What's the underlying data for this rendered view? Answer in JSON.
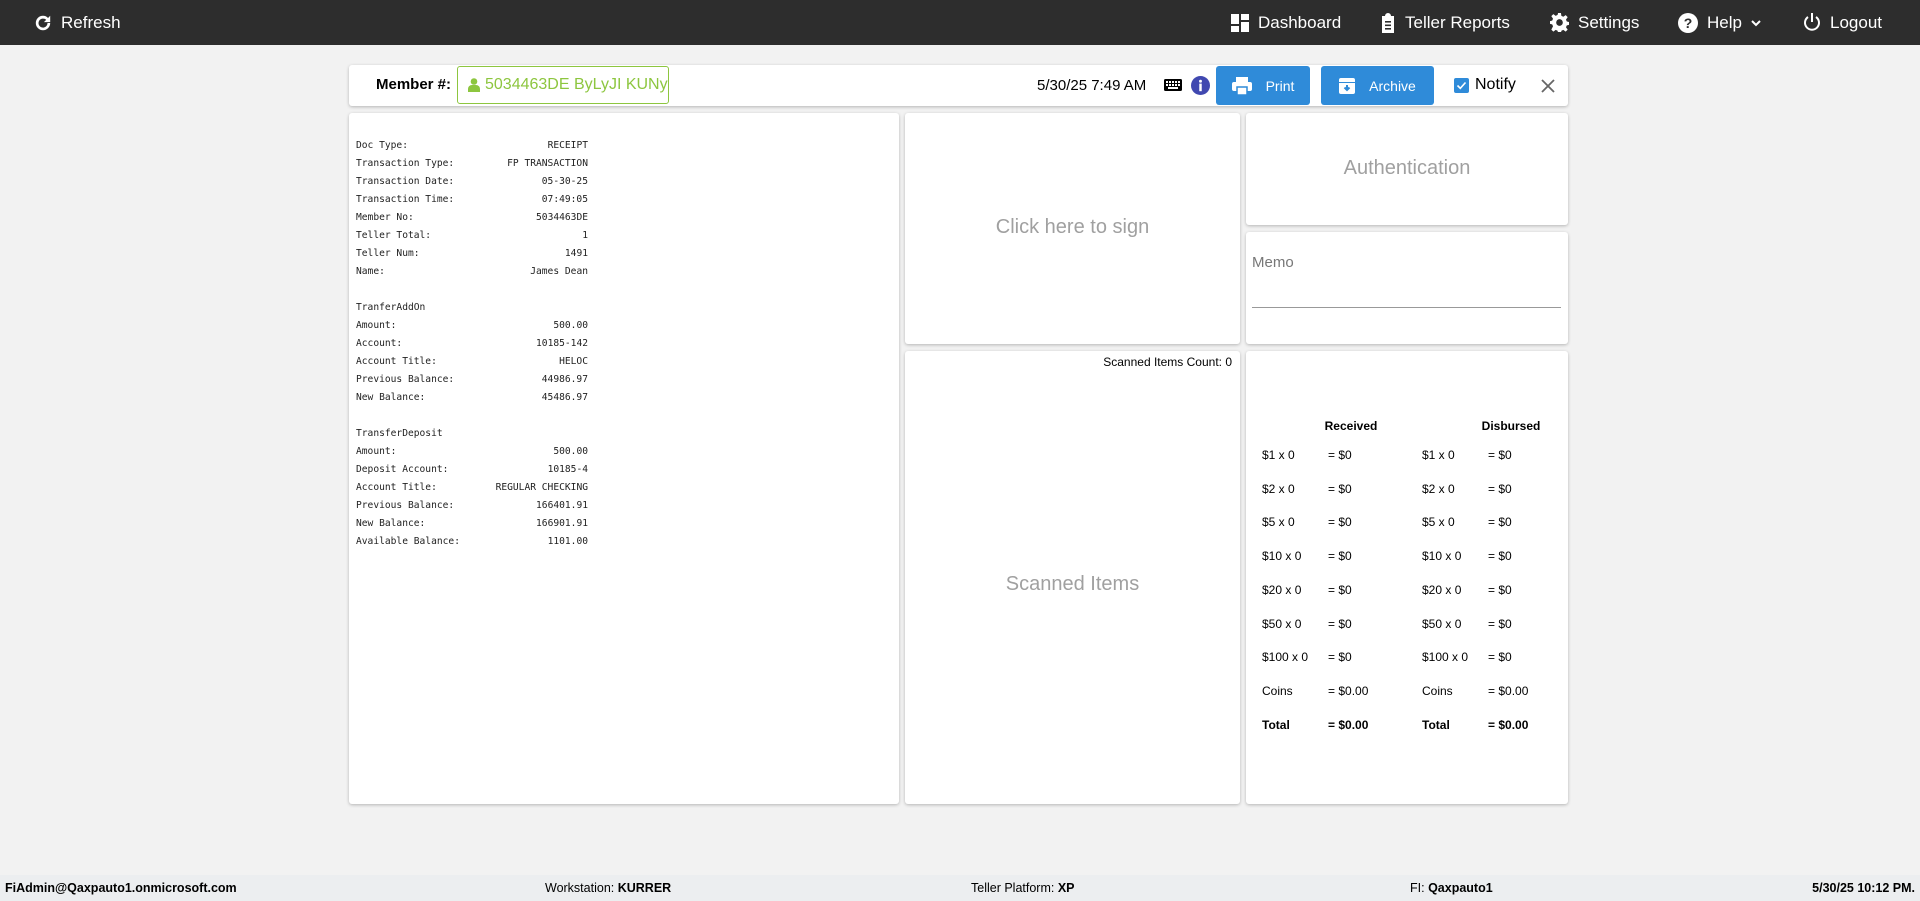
{
  "topbar": {
    "refresh": "Refresh",
    "dashboard": "Dashboard",
    "teller_reports": "Teller Reports",
    "settings": "Settings",
    "help": "Help",
    "logout": "Logout"
  },
  "member": {
    "label": "Member #:",
    "value": "5034463DE ByLyJI KUNy",
    "datetime": "5/30/25 7:49 AM",
    "print": "Print",
    "archive": "Archive",
    "notify": "Notify",
    "notify_checked": true,
    "accent": "#8dc63f",
    "button_color": "#2f8bd9"
  },
  "receipt": {
    "header": [
      [
        "Doc Type:",
        "RECEIPT"
      ],
      [
        "Transaction Type:",
        "FP TRANSACTION"
      ],
      [
        "Transaction Date:",
        "05-30-25"
      ],
      [
        "Transaction Time:",
        "07:49:05"
      ],
      [
        "Member No:",
        "5034463DE"
      ],
      [
        "Teller Total:",
        "1"
      ],
      [
        "Teller Num:",
        "1491"
      ],
      [
        "Name:",
        "James Dean"
      ]
    ],
    "section1_title": "TranferAddOn",
    "section1": [
      [
        "Amount:",
        "500.00"
      ],
      [
        "Account:",
        "10185-142"
      ],
      [
        "Account Title:",
        "HELOC"
      ],
      [
        "Previous Balance:",
        "44986.97"
      ],
      [
        "New Balance:",
        "45486.97"
      ]
    ],
    "section2_title": "TransferDeposit",
    "section2": [
      [
        "Amount:",
        "500.00"
      ],
      [
        "Deposit Account:",
        "10185-4"
      ],
      [
        "Account Title:",
        "REGULAR CHECKING"
      ],
      [
        "Previous Balance:",
        "166401.91"
      ],
      [
        "New Balance:",
        "166901.91"
      ],
      [
        "Available Balance:",
        "1101.00"
      ]
    ]
  },
  "signature": {
    "placeholder": "Click here to sign"
  },
  "scanned": {
    "count_label": "Scanned Items Count: 0",
    "placeholder": "Scanned Items"
  },
  "authentication": {
    "label": "Authentication"
  },
  "memo": {
    "label": "Memo",
    "value": ""
  },
  "cash": {
    "received_header": "Received",
    "disbursed_header": "Disbursed",
    "received": [
      [
        "$1 x 0",
        "= $0"
      ],
      [
        "$2 x 0",
        "= $0"
      ],
      [
        "$5 x 0",
        "= $0"
      ],
      [
        "$10 x 0",
        "= $0"
      ],
      [
        "$20 x 0",
        "= $0"
      ],
      [
        "$50 x 0",
        "= $0"
      ],
      [
        "$100 x 0",
        "= $0"
      ],
      [
        "Coins",
        "= $0.00"
      ],
      [
        "Total",
        "= $0.00"
      ]
    ],
    "disbursed": [
      [
        "$1 x 0",
        "= $0"
      ],
      [
        "$2 x 0",
        "= $0"
      ],
      [
        "$5 x 0",
        "= $0"
      ],
      [
        "$10 x 0",
        "= $0"
      ],
      [
        "$20 x 0",
        "= $0"
      ],
      [
        "$50 x 0",
        "= $0"
      ],
      [
        "$100 x 0",
        "= $0"
      ],
      [
        "Coins",
        "= $0.00"
      ],
      [
        "Total",
        "= $0.00"
      ]
    ]
  },
  "footer": {
    "user": "FiAdmin@Qaxpauto1.onmicrosoft.com",
    "workstation_label": "Workstation: ",
    "workstation": "KURRER",
    "platform_label": "Teller Platform: ",
    "platform": "XP",
    "fi_label": "FI: ",
    "fi": "Qaxpauto1",
    "datetime": "5/30/25 10:12 PM."
  }
}
